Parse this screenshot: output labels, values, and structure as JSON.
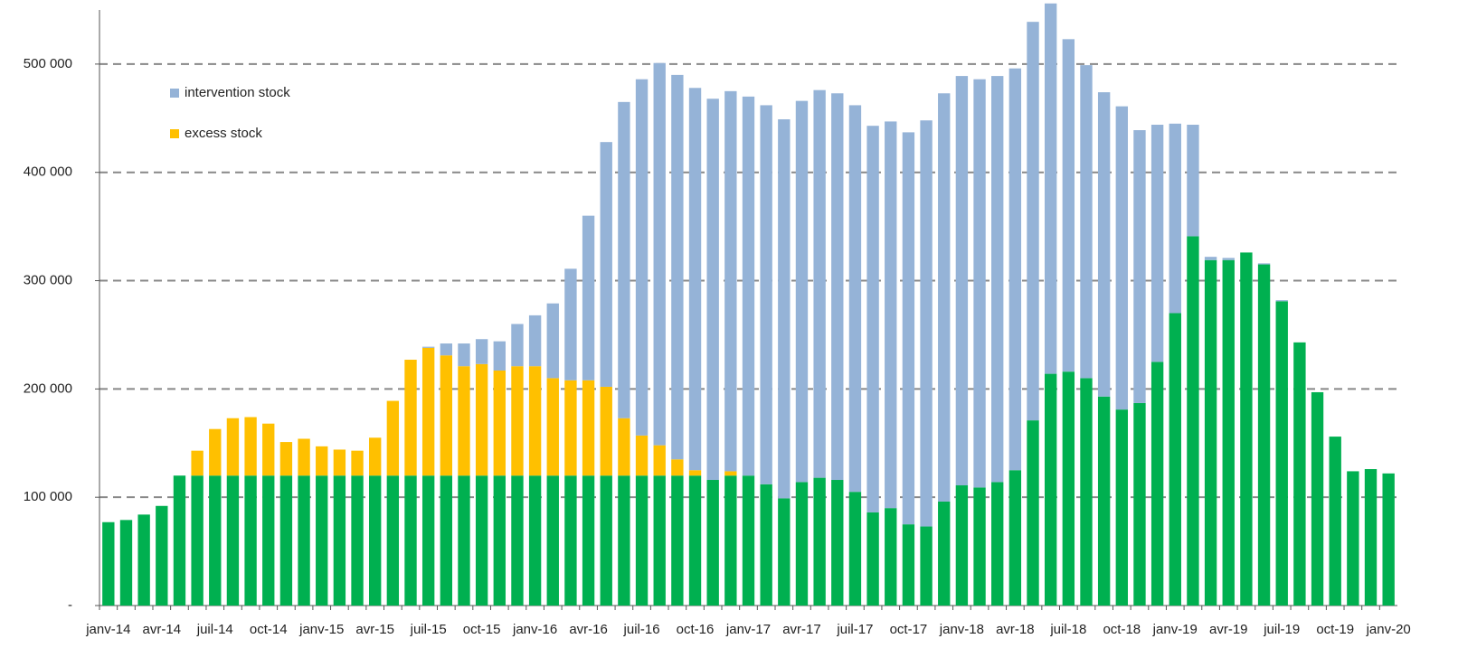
{
  "chart_data": {
    "type": "bar",
    "stacked": true,
    "categories": [
      "janv-14",
      null,
      null,
      "avr-14",
      null,
      null,
      "juil-14",
      null,
      null,
      "oct-14",
      null,
      null,
      "janv-15",
      null,
      null,
      "avr-15",
      null,
      null,
      "juil-15",
      null,
      null,
      "oct-15",
      null,
      null,
      "janv-16",
      null,
      null,
      "avr-16",
      null,
      null,
      "juil-16",
      null,
      null,
      "oct-16",
      null,
      null,
      "janv-17",
      null,
      null,
      "avr-17",
      null,
      null,
      "juil-17",
      null,
      null,
      "oct-17",
      null,
      null,
      "janv-18",
      null,
      null,
      "avr-18",
      null,
      null,
      "juil-18",
      null,
      null,
      "oct-18",
      null,
      null,
      "janv-19",
      null,
      null,
      "avr-19",
      null,
      null,
      "juil-19",
      null,
      null,
      "oct-19",
      null,
      null,
      "janv-20"
    ],
    "series": [
      {
        "color": "#00b050",
        "values": [
          77000,
          79000,
          84000,
          92000,
          120000,
          120000,
          120000,
          120000,
          120000,
          120000,
          120000,
          120000,
          120000,
          120000,
          120000,
          120000,
          120000,
          120000,
          120000,
          120000,
          120000,
          120000,
          120000,
          120000,
          120000,
          120000,
          120000,
          120000,
          120000,
          120000,
          120000,
          120000,
          120000,
          120000,
          116000,
          120000,
          120000,
          112000,
          99000,
          114000,
          118000,
          116000,
          105000,
          86000,
          90000,
          75000,
          73000,
          96000,
          111000,
          109000,
          114000,
          125000,
          171000,
          214000,
          216000,
          210000,
          193000,
          181000,
          187000,
          225000,
          270000,
          341000,
          319000,
          319000,
          326000,
          315000,
          281000,
          243000,
          197000,
          156000,
          124000,
          126000,
          122000
        ]
      },
      {
        "name": "excess stock",
        "color": "#ffc000",
        "values": [
          0,
          0,
          0,
          0,
          0,
          23000,
          43000,
          53000,
          54000,
          48000,
          31000,
          34000,
          27000,
          24000,
          23000,
          35000,
          69000,
          107000,
          118000,
          111000,
          101000,
          103000,
          97000,
          101000,
          101000,
          90000,
          88000,
          88000,
          82000,
          53000,
          37000,
          28000,
          15000,
          5000,
          0,
          4000,
          0,
          0,
          0,
          0,
          0,
          0,
          0,
          0,
          0,
          0,
          0,
          0,
          0,
          0,
          0,
          0,
          0,
          0,
          0,
          0,
          0,
          0,
          0,
          0,
          0,
          0,
          0,
          0,
          0,
          0,
          0,
          0,
          0,
          0,
          0,
          0,
          0
        ]
      },
      {
        "name": "intervention stock",
        "color": "#95b3d7",
        "values": [
          0,
          0,
          0,
          0,
          0,
          0,
          0,
          0,
          0,
          0,
          0,
          0,
          0,
          0,
          0,
          0,
          0,
          0,
          1000,
          11000,
          21000,
          23000,
          27000,
          39000,
          47000,
          69000,
          103000,
          152000,
          226000,
          292000,
          329000,
          353000,
          355000,
          353000,
          352000,
          351000,
          350000,
          350000,
          350000,
          352000,
          358000,
          357000,
          357000,
          357000,
          357000,
          362000,
          375000,
          377000,
          378000,
          377000,
          375000,
          371000,
          368000,
          342000,
          307000,
          289000,
          281000,
          280000,
          252000,
          219000,
          175000,
          103000,
          3000,
          2000,
          0,
          1000,
          1000,
          0,
          0,
          0,
          0,
          0,
          0
        ]
      }
    ],
    "ylim": [
      0,
      550000
    ],
    "yticks": [
      {
        "value": 0,
        "label": "-"
      },
      {
        "value": 100000,
        "label": "100 000"
      },
      {
        "value": 200000,
        "label": "200 000"
      },
      {
        "value": 300000,
        "label": "300 000"
      },
      {
        "value": 400000,
        "label": "400 000"
      },
      {
        "value": 500000,
        "label": "500 000"
      }
    ],
    "grid": true,
    "legend": "upper left"
  }
}
